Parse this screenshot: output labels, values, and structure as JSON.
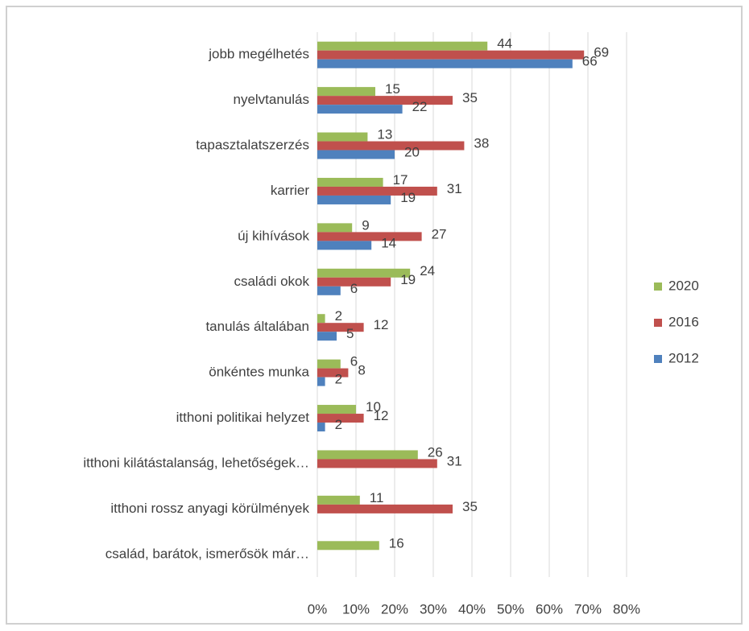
{
  "chart_data": {
    "type": "bar",
    "orientation": "horizontal",
    "categories": [
      "jobb megélhetés",
      "nyelvtanulás",
      "tapasztalatszerzés",
      "karrier",
      "új kihívások",
      "családi okok",
      "tanulás általában",
      "önkéntes munka",
      "itthoni politikai helyzet",
      "itthoni kilátástalanság, lehetőségek…",
      "itthoni rossz anyagi körülmények",
      "család, barátok, ismerősök már…"
    ],
    "series": [
      {
        "name": "2020",
        "color": "#9bbb59",
        "values": [
          44,
          15,
          13,
          17,
          9,
          24,
          2,
          6,
          10,
          26,
          11,
          16
        ]
      },
      {
        "name": "2016",
        "color": "#c0504d",
        "values": [
          69,
          35,
          38,
          31,
          27,
          19,
          12,
          8,
          12,
          31,
          35,
          null
        ]
      },
      {
        "name": "2012",
        "color": "#4f81bd",
        "values": [
          66,
          22,
          20,
          19,
          14,
          6,
          5,
          2,
          2,
          null,
          null,
          null
        ]
      }
    ],
    "xlim": [
      0,
      80
    ],
    "xticks": [
      {
        "value": 0,
        "label": "0%"
      },
      {
        "value": 10,
        "label": "10%"
      },
      {
        "value": 20,
        "label": "20%"
      },
      {
        "value": 30,
        "label": "30%"
      },
      {
        "value": 40,
        "label": "40%"
      },
      {
        "value": 50,
        "label": "50%"
      },
      {
        "value": 60,
        "label": "60%"
      },
      {
        "value": 70,
        "label": "70%"
      },
      {
        "value": 80,
        "label": "80%"
      }
    ],
    "grid": true,
    "legend": "right"
  }
}
